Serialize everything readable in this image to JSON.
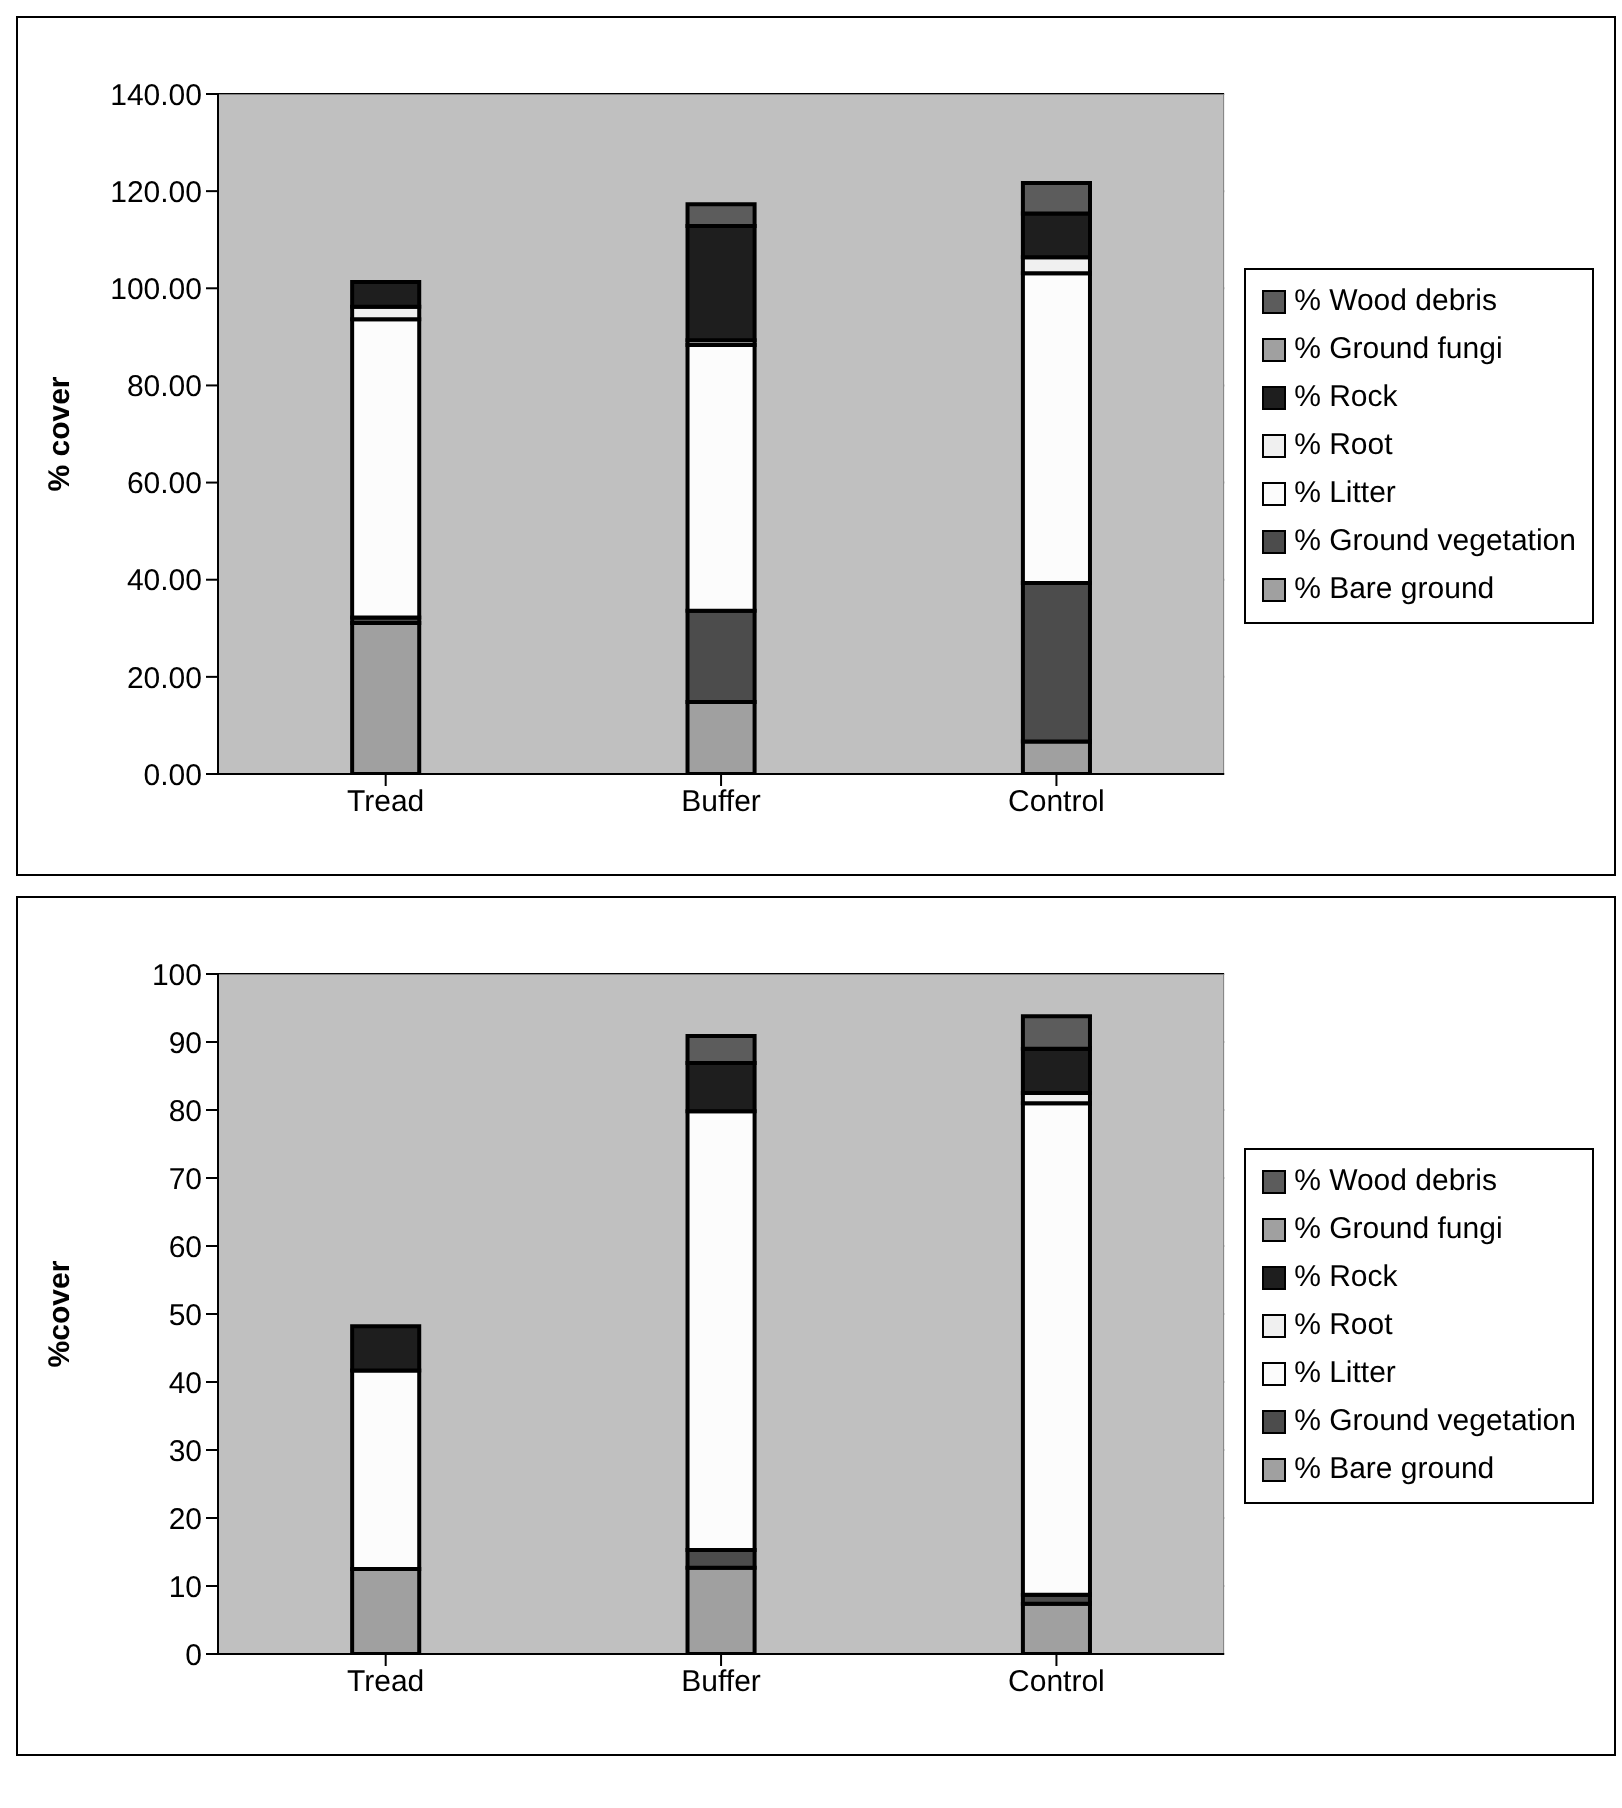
{
  "chart_data": [
    {
      "type": "bar",
      "stacked": true,
      "ylabel": "% cover",
      "categories": [
        "Tread",
        "Buffer",
        "Control"
      ],
      "series": [
        {
          "name": "% Bare ground",
          "color": "#a0a0a0",
          "values": [
            31.1,
            14.8,
            6.7
          ]
        },
        {
          "name": "% Ground vegetation",
          "color": "#4c4c4c",
          "values": [
            1.1,
            18.8,
            32.6
          ]
        },
        {
          "name": "% Litter",
          "color": "#fcfcfc",
          "values": [
            61.4,
            54.7,
            63.8
          ]
        },
        {
          "name": "% Root",
          "color": "#f0f0f0",
          "values": [
            2.6,
            1.0,
            3.3
          ]
        },
        {
          "name": "% Rock",
          "color": "#1e1e1e",
          "values": [
            5.1,
            23.5,
            9.0
          ]
        },
        {
          "name": "% Ground fungi",
          "color": "#a0a0a0",
          "values": [
            0,
            0,
            null
          ]
        },
        {
          "name": "% Wood debris",
          "color": "#5c5c5c",
          "values": [
            0,
            4.5,
            6.3
          ]
        }
      ],
      "ylim": [
        0,
        140
      ],
      "yticks": [
        {
          "value": 0,
          "label": "0.00"
        },
        {
          "value": 20,
          "label": "20.00"
        },
        {
          "value": 40,
          "label": "40.00"
        },
        {
          "value": 60,
          "label": "60.00"
        },
        {
          "value": 80,
          "label": "80.00"
        },
        {
          "value": 100,
          "label": "100.00"
        },
        {
          "value": 120,
          "label": "120.00"
        },
        {
          "value": 140,
          "label": "140.00"
        }
      ],
      "grid": "y",
      "legend": "right"
    },
    {
      "type": "bar",
      "stacked": true,
      "ylabel": "%cover",
      "categories": [
        "Tread",
        "Buffer",
        "Control"
      ],
      "series": [
        {
          "name": "% Bare ground",
          "color": "#a0a0a0",
          "values": [
            12.5,
            12.7,
            7.4
          ]
        },
        {
          "name": "% Ground vegetation",
          "color": "#4c4c4c",
          "values": [
            0,
            2.6,
            1.3
          ]
        },
        {
          "name": "% Litter",
          "color": "#fcfcfc",
          "values": [
            29.2,
            64.5,
            72.3
          ]
        },
        {
          "name": "% Root",
          "color": "#f0f0f0",
          "values": [
            0,
            null,
            1.5
          ]
        },
        {
          "name": "% Rock",
          "color": "#1e1e1e",
          "values": [
            6.5,
            7.1,
            6.5
          ]
        },
        {
          "name": "% Ground fungi",
          "color": "#a0a0a0",
          "values": [
            0,
            0,
            0
          ]
        },
        {
          "name": "% Wood debris",
          "color": "#5c5c5c",
          "values": [
            0,
            4.0,
            4.8
          ]
        }
      ],
      "ylim": [
        0,
        100
      ],
      "yticks": [
        0,
        10,
        20,
        30,
        40,
        50,
        60,
        70,
        80,
        90,
        100
      ],
      "grid": "y",
      "legend": "right"
    }
  ]
}
